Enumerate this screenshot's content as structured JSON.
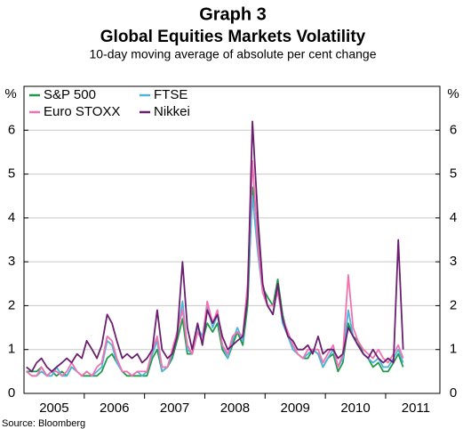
{
  "chart_data": {
    "type": "line",
    "title": "Graph 3",
    "subtitle": "Global Equities Markets Volatility",
    "note": "10-day moving average of absolute per cent change",
    "source": "Source: Bloomberg",
    "y_label": "%",
    "y2_label": "%",
    "x": [
      2005.04,
      2005.13,
      2005.21,
      2005.29,
      2005.38,
      2005.46,
      2005.54,
      2005.63,
      2005.71,
      2005.79,
      2005.88,
      2005.96,
      2006.04,
      2006.13,
      2006.21,
      2006.29,
      2006.38,
      2006.46,
      2006.54,
      2006.63,
      2006.71,
      2006.79,
      2006.88,
      2006.96,
      2007.04,
      2007.13,
      2007.21,
      2007.29,
      2007.38,
      2007.46,
      2007.54,
      2007.63,
      2007.71,
      2007.79,
      2007.88,
      2007.96,
      2008.04,
      2008.13,
      2008.21,
      2008.29,
      2008.38,
      2008.46,
      2008.54,
      2008.63,
      2008.71,
      2008.79,
      2008.88,
      2008.96,
      2009.04,
      2009.13,
      2009.21,
      2009.29,
      2009.38,
      2009.46,
      2009.54,
      2009.63,
      2009.71,
      2009.79,
      2009.88,
      2009.96,
      2010.04,
      2010.13,
      2010.21,
      2010.29,
      2010.38,
      2010.46,
      2010.54,
      2010.63,
      2010.71,
      2010.79,
      2010.88,
      2010.96,
      2011.04,
      2011.13,
      2011.21,
      2011.29
    ],
    "series": [
      {
        "name": "S&P 500",
        "color": "#1f9a48",
        "values": [
          0.5,
          0.5,
          0.5,
          0.6,
          0.4,
          0.5,
          0.4,
          0.5,
          0.4,
          0.6,
          0.5,
          0.4,
          0.4,
          0.4,
          0.4,
          0.5,
          0.8,
          0.9,
          0.7,
          0.5,
          0.4,
          0.4,
          0.4,
          0.4,
          0.4,
          0.8,
          1.0,
          0.5,
          0.6,
          0.8,
          1.2,
          1.7,
          0.9,
          0.9,
          1.4,
          1.2,
          1.6,
          1.4,
          1.6,
          1.0,
          0.8,
          1.1,
          1.4,
          1.1,
          2.0,
          4.7,
          3.8,
          2.4,
          2.2,
          2.0,
          2.6,
          1.8,
          1.3,
          1.1,
          0.9,
          0.8,
          0.8,
          1.0,
          0.9,
          0.6,
          0.8,
          0.9,
          0.5,
          0.7,
          1.6,
          1.3,
          1.2,
          0.9,
          0.8,
          0.6,
          0.7,
          0.5,
          0.5,
          0.7,
          0.9,
          0.6
        ]
      },
      {
        "name": "FTSE",
        "color": "#4fb4dc",
        "values": [
          0.5,
          0.4,
          0.4,
          0.5,
          0.4,
          0.4,
          0.6,
          0.4,
          0.4,
          0.6,
          0.5,
          0.4,
          0.5,
          0.4,
          0.5,
          0.6,
          1.2,
          1.1,
          0.7,
          0.5,
          0.5,
          0.4,
          0.5,
          0.4,
          0.5,
          0.9,
          1.2,
          0.5,
          0.6,
          0.9,
          1.3,
          2.1,
          1.0,
          0.9,
          1.5,
          1.3,
          2.0,
          1.5,
          1.8,
          1.1,
          0.8,
          1.2,
          1.5,
          1.2,
          2.4,
          4.5,
          3.2,
          2.3,
          2.0,
          1.8,
          2.4,
          1.6,
          1.3,
          1.0,
          0.9,
          0.8,
          0.9,
          1.0,
          0.9,
          0.6,
          0.8,
          1.0,
          0.6,
          0.8,
          1.9,
          1.3,
          1.1,
          0.9,
          0.8,
          0.7,
          0.8,
          0.6,
          0.6,
          0.8,
          1.0,
          0.7
        ]
      },
      {
        "name": "Euro STOXX",
        "color": "#f272b0",
        "values": [
          0.5,
          0.4,
          0.4,
          0.6,
          0.4,
          0.5,
          0.5,
          0.4,
          0.5,
          0.7,
          0.5,
          0.4,
          0.5,
          0.4,
          0.6,
          0.7,
          1.3,
          1.2,
          0.8,
          0.5,
          0.5,
          0.4,
          0.5,
          0.5,
          0.5,
          1.0,
          1.3,
          0.6,
          0.6,
          1.0,
          1.4,
          1.9,
          1.1,
          0.9,
          1.4,
          1.2,
          2.1,
          1.6,
          1.9,
          1.1,
          0.9,
          1.3,
          1.4,
          1.3,
          2.5,
          5.3,
          3.4,
          2.3,
          2.0,
          2.0,
          2.3,
          1.7,
          1.4,
          1.1,
          0.9,
          0.8,
          1.0,
          1.0,
          1.0,
          0.7,
          0.9,
          1.1,
          0.6,
          0.9,
          2.7,
          1.5,
          1.2,
          1.0,
          0.9,
          0.8,
          1.0,
          0.8,
          0.7,
          0.9,
          1.1,
          0.8
        ]
      },
      {
        "name": "Nikkei",
        "color": "#6a1f70",
        "values": [
          0.6,
          0.5,
          0.7,
          0.8,
          0.6,
          0.5,
          0.6,
          0.7,
          0.8,
          0.7,
          0.9,
          0.8,
          1.2,
          1.0,
          0.8,
          1.1,
          1.8,
          1.6,
          1.2,
          0.8,
          0.9,
          0.8,
          0.9,
          0.7,
          0.8,
          1.0,
          1.9,
          1.0,
          0.8,
          0.9,
          1.3,
          3.0,
          1.5,
          1.0,
          1.6,
          1.1,
          1.9,
          1.6,
          1.8,
          1.3,
          1.0,
          1.1,
          1.2,
          1.3,
          2.2,
          6.2,
          4.0,
          2.5,
          2.0,
          1.8,
          2.5,
          1.7,
          1.3,
          1.2,
          1.0,
          1.0,
          1.1,
          0.9,
          1.3,
          0.9,
          1.0,
          1.0,
          0.8,
          0.9,
          1.5,
          1.3,
          1.1,
          0.9,
          0.8,
          1.0,
          0.8,
          0.7,
          0.8,
          0.7,
          3.5,
          1.0
        ]
      }
    ],
    "xlim": [
      2005,
      2011.9
    ],
    "xticks": [
      {
        "value": 2005.5,
        "label": "2005"
      },
      {
        "value": 2006.5,
        "label": "2006"
      },
      {
        "value": 2007.5,
        "label": "2007"
      },
      {
        "value": 2008.5,
        "label": "2008"
      },
      {
        "value": 2009.5,
        "label": "2009"
      },
      {
        "value": 2010.5,
        "label": "2010"
      },
      {
        "value": 2011.5,
        "label": "2011"
      }
    ],
    "xminor_ticks": [
      2006,
      2007,
      2008,
      2009,
      2010,
      2011
    ],
    "ylim": [
      0,
      7
    ],
    "yticks": [
      0,
      1,
      2,
      3,
      4,
      5,
      6
    ],
    "y2lim": [
      0,
      7
    ],
    "y2ticks": [
      0,
      1,
      2,
      3,
      4,
      5,
      6
    ],
    "grid": true,
    "legend": "top-left"
  }
}
